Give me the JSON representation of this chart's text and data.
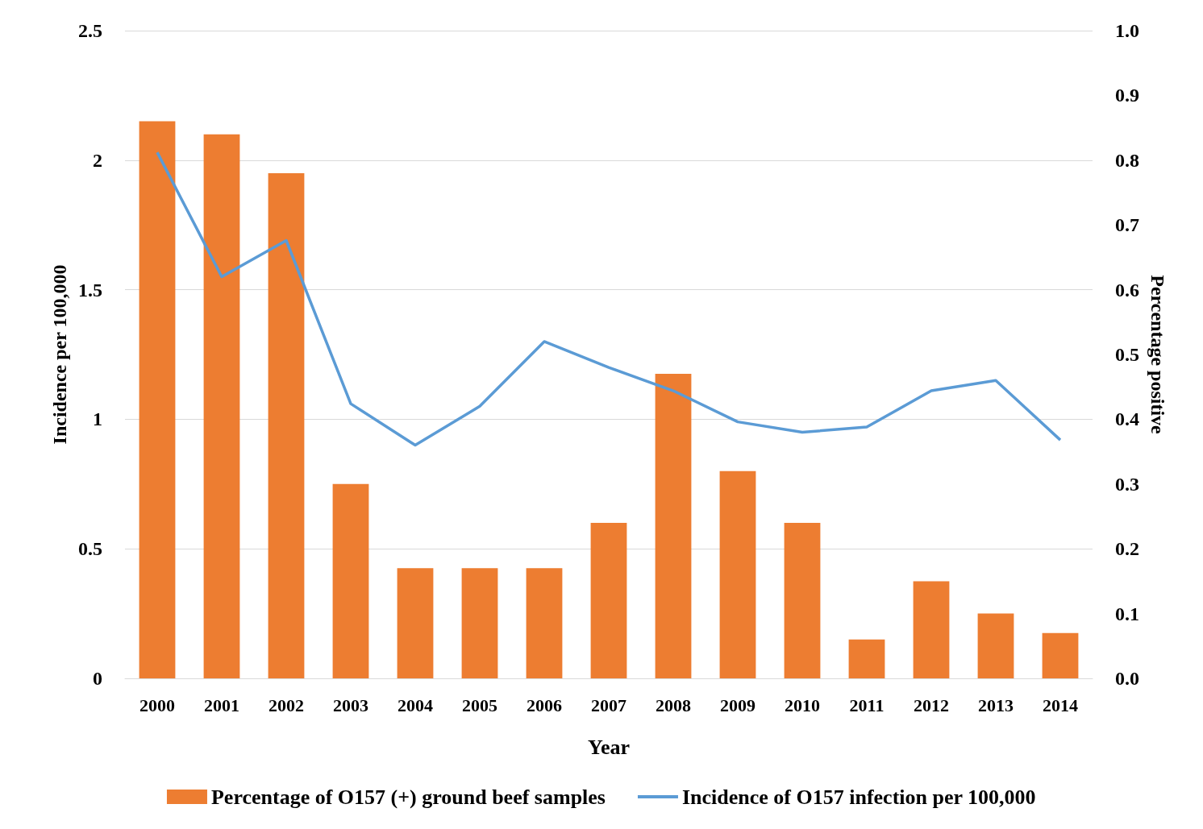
{
  "chart_data": {
    "type": "bar",
    "xlabel": "Year",
    "ylabel": "Incidence per 100,000",
    "y2label": "Percentage positive",
    "categories": [
      "2000",
      "2001",
      "2002",
      "2003",
      "2004",
      "2005",
      "2006",
      "2007",
      "2008",
      "2009",
      "2010",
      "2011",
      "2012",
      "2013",
      "2014"
    ],
    "series": [
      {
        "name": "Percentage of O157 (+) ground beef samples",
        "axis": "y2",
        "color": "#ed7d31",
        "values": [
          0.86,
          0.84,
          0.78,
          0.3,
          0.17,
          0.17,
          0.17,
          0.24,
          0.47,
          0.32,
          0.24,
          0.06,
          0.15,
          0.1,
          0.07
        ]
      },
      {
        "name": "Incidence of O157 infection per 100,000",
        "type": "line",
        "axis": "y",
        "color": "#5b9bd5",
        "values": [
          2.03,
          1.55,
          1.69,
          1.06,
          0.9,
          1.05,
          1.3,
          1.2,
          1.11,
          0.99,
          0.95,
          0.97,
          1.11,
          1.15,
          0.92
        ]
      }
    ],
    "ylim": [
      0,
      2.5
    ],
    "yticks": [
      0,
      0.5,
      1,
      1.5,
      2,
      2.5
    ],
    "y2lim": [
      0,
      1.0
    ],
    "y2ticks": [
      {
        "value": 0,
        "label": "0.0"
      },
      0.1,
      0.2,
      0.3,
      0.4,
      0.5,
      0.6,
      0.7,
      0.8,
      0.9,
      {
        "value": 1,
        "label": "1.0"
      }
    ],
    "grid": "y",
    "legend": "bottom",
    "marker": "none",
    "line_style": "solid"
  }
}
